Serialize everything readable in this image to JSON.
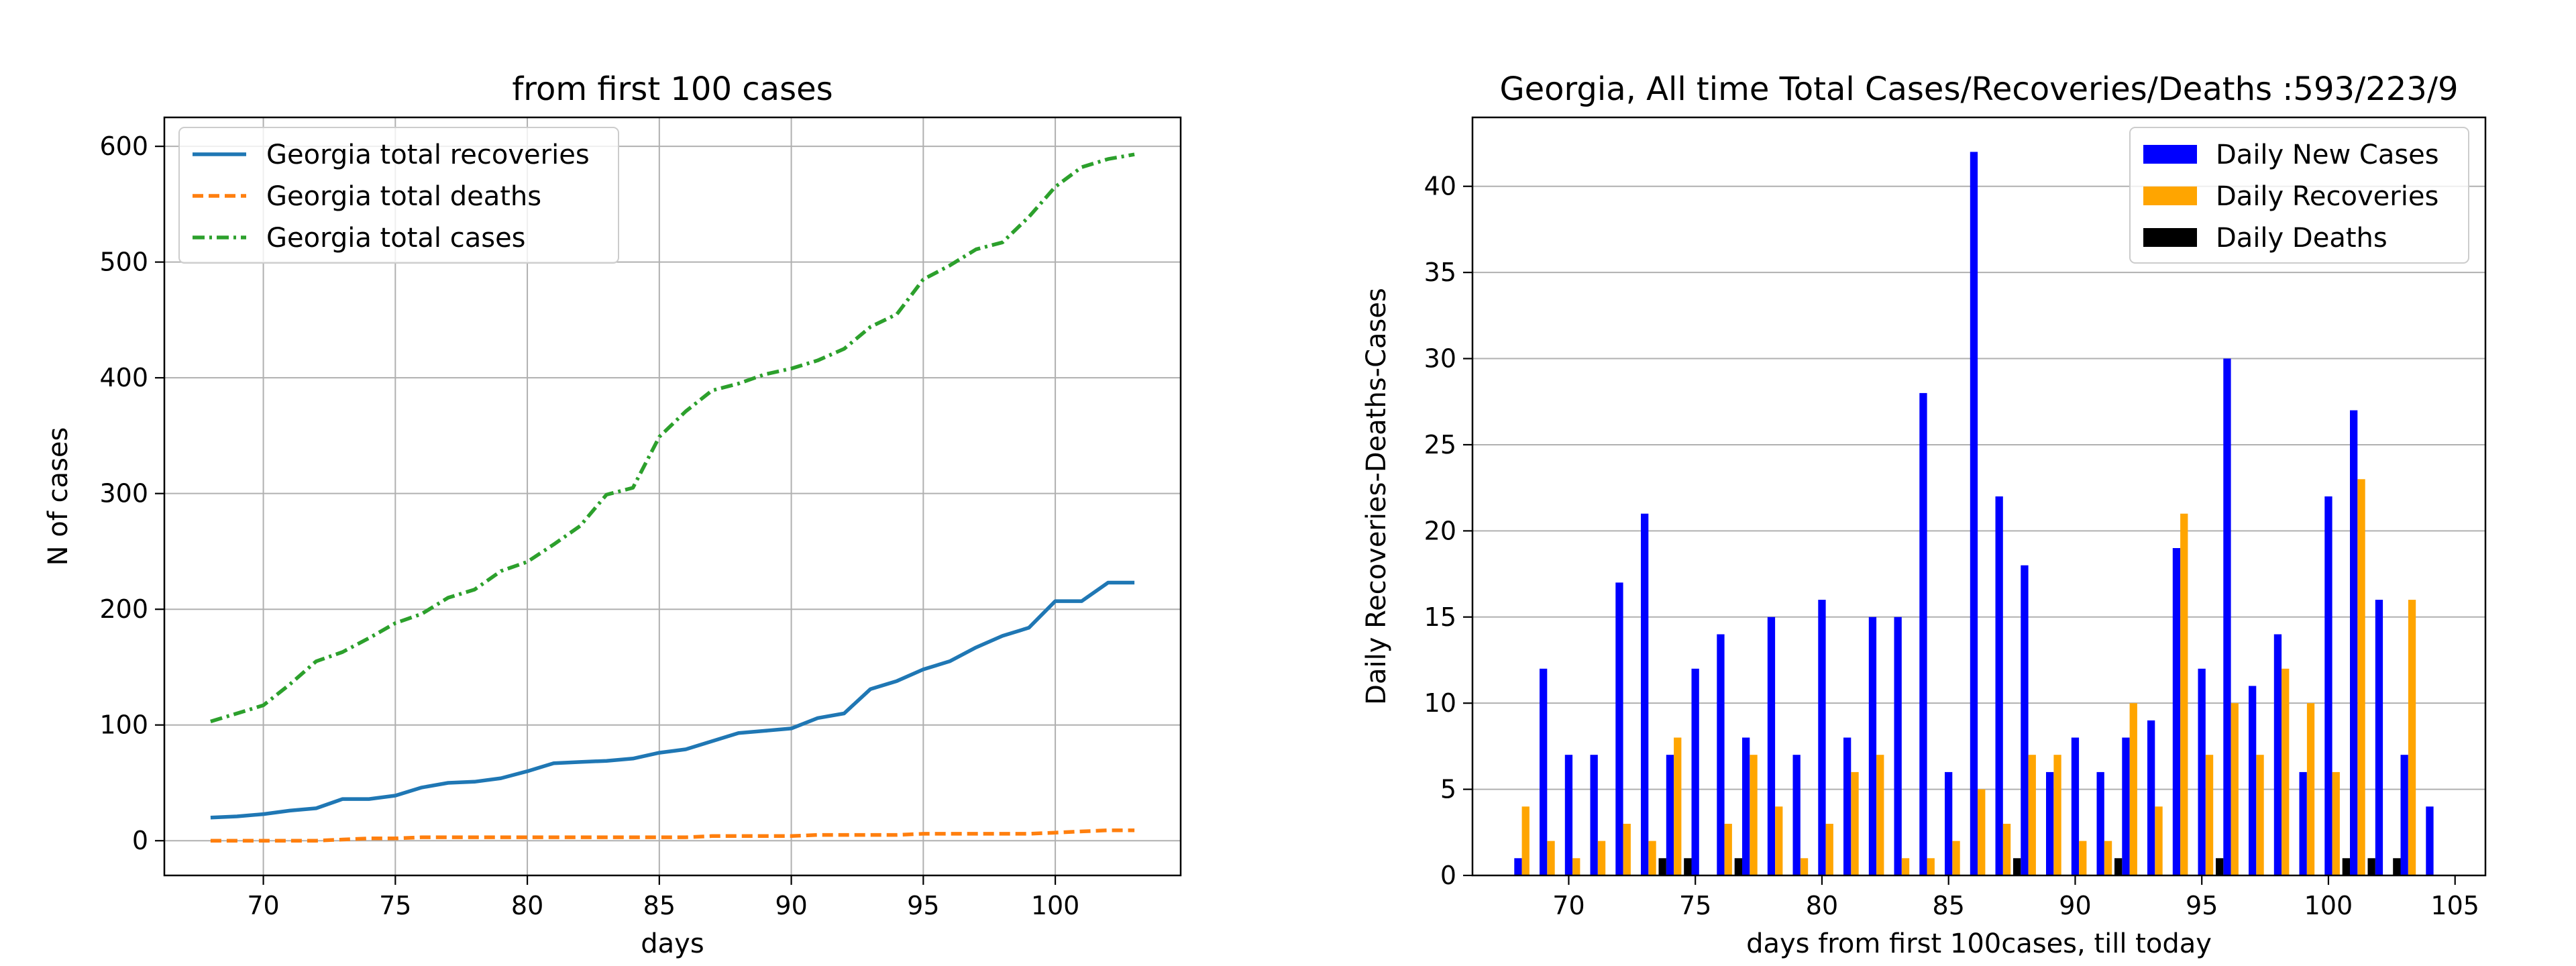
{
  "chart_data": [
    {
      "type": "line",
      "title": "from first 100  cases",
      "xlabel": "days",
      "ylabel": "N of cases",
      "xlim": [
        66.25,
        104.75
      ],
      "ylim": [
        -30,
        625
      ],
      "xticks": [
        70,
        75,
        80,
        85,
        90,
        95,
        100
      ],
      "yticks": [
        0,
        100,
        200,
        300,
        400,
        500,
        600
      ],
      "grid": true,
      "legend_position": "top-left",
      "x": [
        68,
        69,
        70,
        71,
        72,
        73,
        74,
        75,
        76,
        77,
        78,
        79,
        80,
        81,
        82,
        83,
        84,
        85,
        86,
        87,
        88,
        89,
        90,
        91,
        92,
        93,
        94,
        95,
        96,
        97,
        98,
        99,
        100,
        101,
        102,
        103
      ],
      "series": [
        {
          "name": "Georgia total recoveries",
          "color": "#1f77b4",
          "style": "solid",
          "values": [
            20,
            21,
            23,
            26,
            28,
            36,
            36,
            39,
            46,
            50,
            51,
            54,
            60,
            67,
            68,
            69,
            71,
            76,
            79,
            86,
            93,
            95,
            97,
            106,
            110,
            131,
            138,
            148,
            155,
            167,
            177,
            184,
            207,
            207,
            223,
            223
          ]
        },
        {
          "name": "Georgia total deaths",
          "color": "#ff7f0e",
          "style": "dashed",
          "values": [
            0,
            0,
            0,
            0,
            0,
            1,
            2,
            2,
            3,
            3,
            3,
            3,
            3,
            3,
            3,
            3,
            3,
            3,
            3,
            4,
            4,
            4,
            4,
            5,
            5,
            5,
            5,
            6,
            6,
            6,
            6,
            6,
            7,
            8,
            9,
            9
          ]
        },
        {
          "name": "Georgia total cases",
          "color": "#2ca02c",
          "style": "dashdot",
          "values": [
            103,
            110,
            117,
            135,
            155,
            163,
            175,
            188,
            196,
            210,
            217,
            233,
            241,
            256,
            272,
            299,
            305,
            349,
            371,
            389,
            395,
            403,
            408,
            415,
            425,
            444,
            455,
            485,
            497,
            511,
            517,
            539,
            565,
            582,
            589,
            593
          ]
        }
      ]
    },
    {
      "type": "bar",
      "title": "Georgia, All time Total Cases/Recoveries/Deaths :593/223/9",
      "xlabel": "days from first 100cases, till today",
      "ylabel": "Daily Recoveries-Deaths-Cases",
      "xlim": [
        66.2,
        106.2
      ],
      "ylim": [
        0,
        44
      ],
      "xticks": [
        70,
        75,
        80,
        85,
        90,
        95,
        100,
        105
      ],
      "yticks": [
        0,
        5,
        10,
        15,
        20,
        25,
        30,
        35,
        40
      ],
      "grid": "y",
      "legend_position": "top-right",
      "x": [
        68,
        69,
        70,
        71,
        72,
        73,
        74,
        75,
        76,
        77,
        78,
        79,
        80,
        81,
        82,
        83,
        84,
        85,
        86,
        87,
        88,
        89,
        90,
        91,
        92,
        93,
        94,
        95,
        96,
        97,
        98,
        99,
        100,
        101,
        102,
        103,
        104
      ],
      "series": [
        {
          "name": "Daily New Cases",
          "color": "#0000ff",
          "values": [
            1,
            12,
            7,
            7,
            17,
            21,
            7,
            12,
            14,
            8,
            15,
            7,
            16,
            8,
            15,
            15,
            28,
            6,
            42,
            22,
            18,
            6,
            8,
            6,
            8,
            9,
            19,
            12,
            30,
            11,
            14,
            6,
            22,
            27,
            16,
            7,
            4
          ]
        },
        {
          "name": "Daily Recoveries",
          "color": "#ffa500",
          "values": [
            4,
            2,
            1,
            2,
            3,
            2,
            8,
            0,
            3,
            7,
            4,
            1,
            3,
            6,
            7,
            1,
            1,
            2,
            5,
            3,
            7,
            7,
            2,
            2,
            10,
            4,
            21,
            7,
            10,
            7,
            12,
            10,
            6,
            23,
            0,
            16,
            0
          ]
        },
        {
          "name": "Daily Deaths",
          "color": "#000000",
          "values": [
            0,
            0,
            0,
            0,
            0,
            0,
            1,
            1,
            0,
            1,
            0,
            0,
            0,
            0,
            0,
            0,
            0,
            0,
            0,
            0,
            1,
            0,
            0,
            0,
            1,
            0,
            0,
            0,
            1,
            0,
            0,
            0,
            0,
            1,
            1,
            1,
            0
          ]
        }
      ]
    }
  ]
}
